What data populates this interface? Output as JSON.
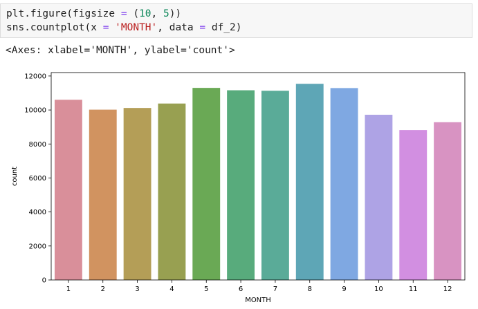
{
  "code": {
    "line1": {
      "fn": "plt.figure(figsize ",
      "op": "=",
      "open": " (",
      "n1": "10",
      "comma": ", ",
      "n2": "5",
      "close": "))"
    },
    "line2": {
      "fn": "sns.countplot(x ",
      "op": "=",
      "sp": " ",
      "str": "'MONTH'",
      "mid": ", data ",
      "op2": "=",
      "end": " df_2)"
    }
  },
  "output_text": "<Axes: xlabel='MONTH', ylabel='count'>",
  "chart_data": {
    "type": "bar",
    "categories": [
      "1",
      "2",
      "3",
      "4",
      "5",
      "6",
      "7",
      "8",
      "9",
      "10",
      "11",
      "12"
    ],
    "values": [
      10600,
      10020,
      10120,
      10380,
      11300,
      11160,
      11130,
      11540,
      11290,
      9720,
      8820,
      9280
    ],
    "colors": [
      "#d98f9a",
      "#d19360",
      "#b49e57",
      "#98a051",
      "#6aa955",
      "#58ab7c",
      "#5aab98",
      "#5ea6b6",
      "#7fa8e2",
      "#aea3e5",
      "#d28fe1",
      "#d893c2"
    ],
    "xlabel": "MONTH",
    "ylabel": "count",
    "ylim": [
      0,
      12200
    ],
    "yticks": [
      0,
      2000,
      4000,
      6000,
      8000,
      10000,
      12000
    ]
  }
}
